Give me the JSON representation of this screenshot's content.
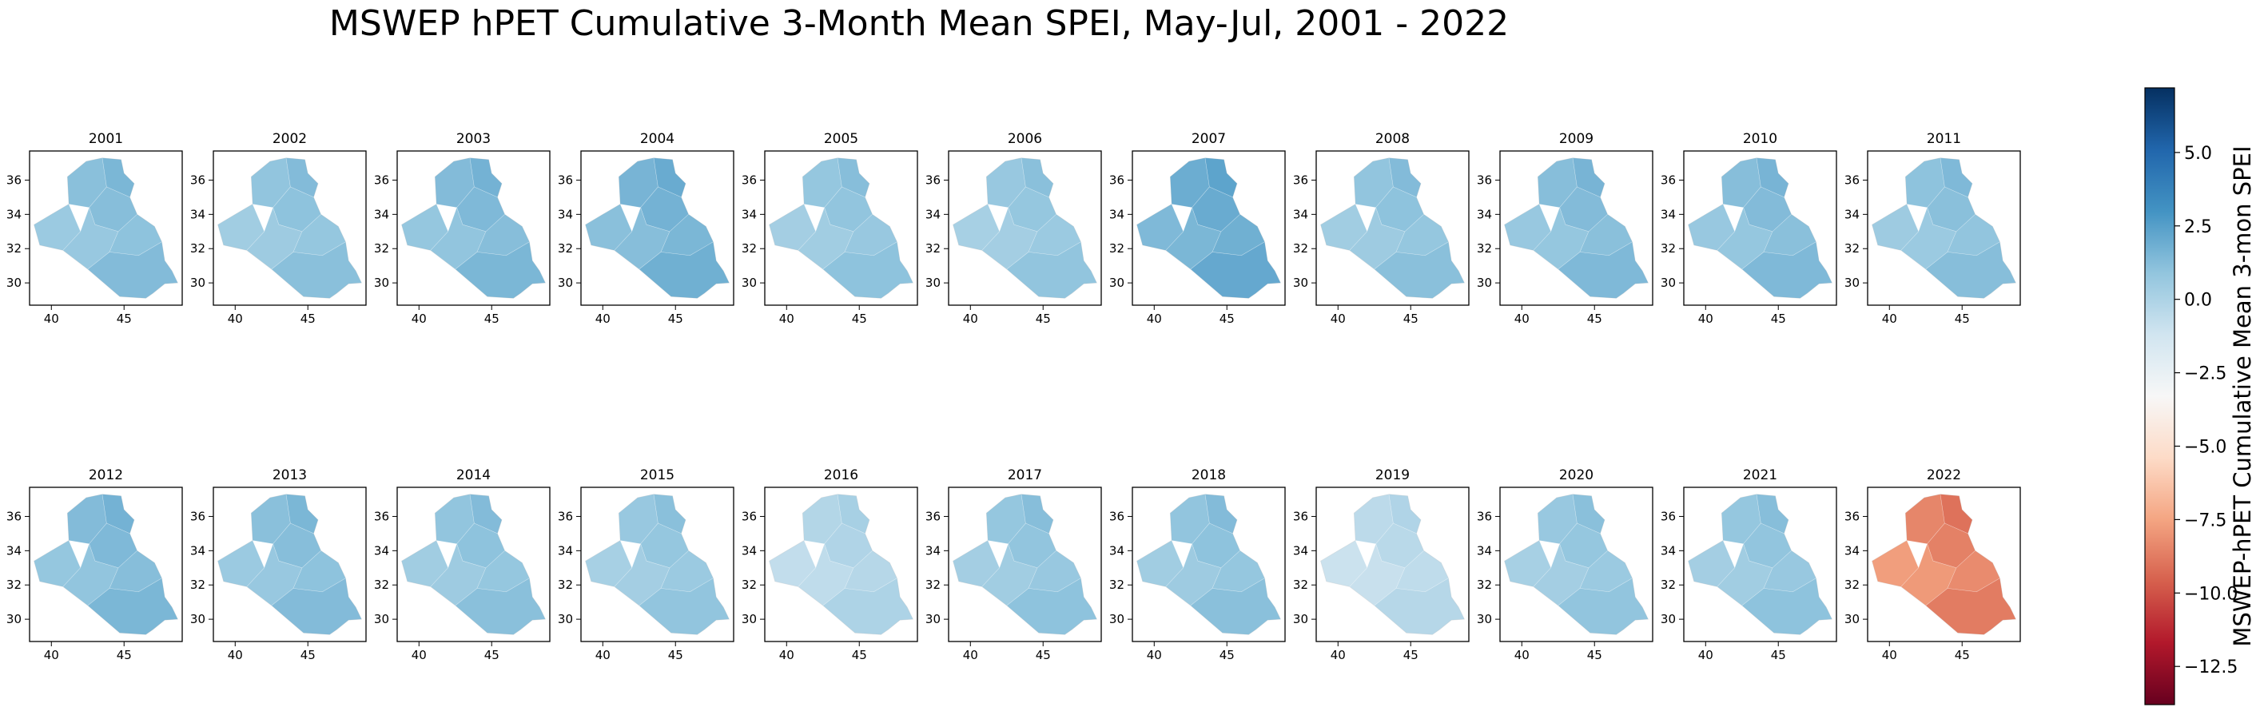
{
  "title": "MSWEP hPET Cumulative 3-Month Mean SPEI, May-Jul, 2001 - 2022",
  "chart_data": {
    "type": "heatmap",
    "description_kind": "small-multiple choropleth maps",
    "panels": [
      {
        "year": "2001",
        "mean_spei": 0.8
      },
      {
        "year": "2002",
        "mean_spei": 0.6
      },
      {
        "year": "2003",
        "mean_spei": 1.0
      },
      {
        "year": "2004",
        "mean_spei": 1.3
      },
      {
        "year": "2005",
        "mean_spei": 0.5
      },
      {
        "year": "2006",
        "mean_spei": 0.4
      },
      {
        "year": "2007",
        "mean_spei": 1.6
      },
      {
        "year": "2008",
        "mean_spei": 0.6
      },
      {
        "year": "2009",
        "mean_spei": 0.9
      },
      {
        "year": "2010",
        "mean_spei": 0.9
      },
      {
        "year": "2011",
        "mean_spei": 0.7
      },
      {
        "year": "2012",
        "mean_spei": 1.0
      },
      {
        "year": "2013",
        "mean_spei": 0.8
      },
      {
        "year": "2014",
        "mean_spei": 0.6
      },
      {
        "year": "2015",
        "mean_spei": 0.4
      },
      {
        "year": "2016",
        "mean_spei": -0.5
      },
      {
        "year": "2017",
        "mean_spei": 0.5
      },
      {
        "year": "2018",
        "mean_spei": 0.6
      },
      {
        "year": "2019",
        "mean_spei": -0.8
      },
      {
        "year": "2020",
        "mean_spei": 0.4
      },
      {
        "year": "2021",
        "mean_spei": 0.5
      },
      {
        "year": "2022",
        "mean_spei": -8.0
      }
    ],
    "map_axes": {
      "x_ticks": [
        40,
        45
      ],
      "y_ticks": [
        30,
        32,
        34,
        36
      ],
      "xlim": [
        38.5,
        49
      ],
      "ylim": [
        28.7,
        37.7
      ]
    },
    "colorbar": {
      "label": "MSWEP-hPET Cumulative Mean 3-mon SPEI",
      "ticks": [
        "5.0",
        "2.5",
        "0.0",
        "−2.5",
        "−5.0",
        "−7.5",
        "−10.0",
        "−12.5"
      ],
      "tick_values": [
        5,
        2.5,
        0,
        -2.5,
        -5,
        -7.5,
        -10,
        -12.5
      ],
      "range": [
        -13.8,
        7.2
      ],
      "colormap": "RdBu"
    },
    "colors": {
      "axis": "#000000",
      "neg_extreme": "#67001f",
      "neg_mid": "#d6604d",
      "neutral": "#f7f7f7",
      "pos_mid": "#4393c3",
      "pos_extreme": "#053061"
    }
  }
}
